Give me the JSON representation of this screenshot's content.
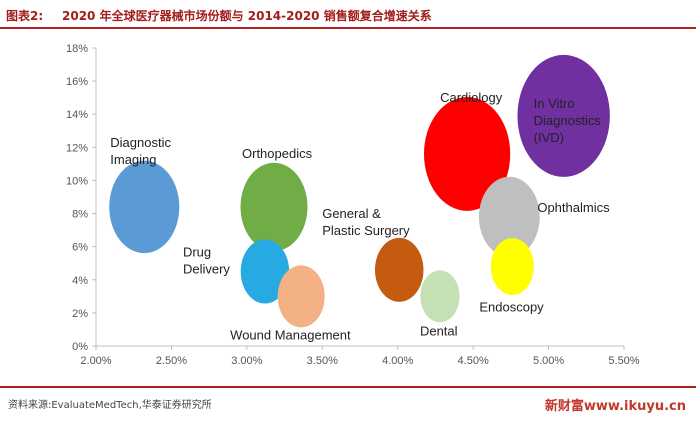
{
  "header": {
    "prefix": "图表2:",
    "title": "2020 年全球医疗器械市场份额与 2014-2020 销售额复合增速关系"
  },
  "footer": {
    "source": "资料来源:EvaluateMedTech,华泰证券研究所",
    "watermark": "新财富www.ikuyu.cn"
  },
  "chart_data": {
    "type": "scatter",
    "title": "2020 年全球医疗器械市场份额与 2014-2020 销售额复合增速关系",
    "xlabel": "",
    "ylabel": "",
    "xlim": [
      0.02,
      0.055
    ],
    "ylim": [
      0,
      0.18
    ],
    "x_ticks": [
      "2.00%",
      "2.50%",
      "3.00%",
      "3.50%",
      "4.00%",
      "4.50%",
      "5.00%",
      "5.50%"
    ],
    "y_ticks": [
      "0%",
      "2%",
      "4%",
      "6%",
      "8%",
      "10%",
      "12%",
      "14%",
      "16%",
      "18%"
    ],
    "grid": false,
    "legend": "none",
    "points": [
      {
        "label": "Diagnostic\nImaging",
        "x": 0.0232,
        "y": 0.084,
        "size": 9.1,
        "color": "#5b9bd5"
      },
      {
        "label": "Orthopedics",
        "x": 0.0318,
        "y": 0.084,
        "size": 8.7,
        "color": "#70ad47"
      },
      {
        "label": "Drug\nDelivery",
        "x": 0.0312,
        "y": 0.045,
        "size": 6.3,
        "color": "#27aae1"
      },
      {
        "label": "Wound Management",
        "x": 0.0336,
        "y": 0.03,
        "size": 6.1,
        "color": "#f4b183"
      },
      {
        "label": "General &\nPlastic Surgery",
        "x": 0.0401,
        "y": 0.046,
        "size": 6.3,
        "color": "#c55a11"
      },
      {
        "label": "Dental",
        "x": 0.0428,
        "y": 0.03,
        "size": 5.1,
        "color": "#c5e0b4"
      },
      {
        "label": "Cardiology",
        "x": 0.0446,
        "y": 0.116,
        "size": 11.2,
        "color": "#ff0000"
      },
      {
        "label": "In Vitro\nDiagnostics\n(IVD)",
        "x": 0.051,
        "y": 0.139,
        "size": 12.0,
        "color": "#7030a0"
      },
      {
        "label": "Ophthalmics",
        "x": 0.0474,
        "y": 0.078,
        "size": 7.9,
        "color": "#bfbfbf"
      },
      {
        "label": "Endoscopy",
        "x": 0.0476,
        "y": 0.048,
        "size": 5.6,
        "color": "#ffff00"
      }
    ]
  }
}
